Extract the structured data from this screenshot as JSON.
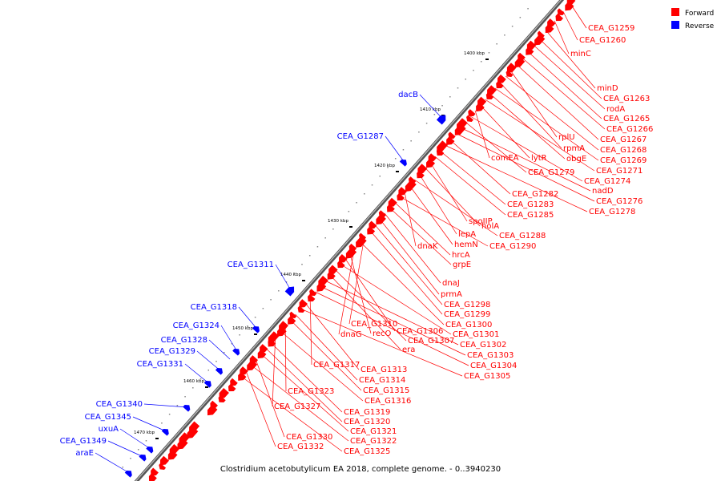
{
  "colors": {
    "forward": "#ff0000",
    "reverse": "#0000ff",
    "backbone": "#666666",
    "text": "#000000"
  },
  "legend": [
    {
      "label": "Forward",
      "color": "#ff0000"
    },
    {
      "label": "Reverse",
      "color": "#0000ff"
    }
  ],
  "caption": "Clostridium acetobutylicum EA 2018, complete genome. - 0..3940230",
  "ticks": [
    "1400 kbp",
    "1410 kbp",
    "1420 kbp",
    "1430 kbp",
    "1440 kbp",
    "1450 kbp",
    "1460 kbp",
    "1470 kbp"
  ],
  "forward_labels": [
    "CEA_G1259",
    "CEA_G1260",
    "minC",
    "minD",
    "CEA_G1263",
    "rodA",
    "CEA_G1265",
    "CEA_G1266",
    "CEA_G1267",
    "rplU",
    "CEA_G1268",
    "rpmA",
    "CEA_G1269",
    "obgE",
    "CEA_G1271",
    "lytR",
    "comEA",
    "CEA_G1274",
    "CEA_G1279",
    "nadD",
    "CEA_G1276",
    "CEA_G1282",
    "CEA_G1278",
    "CEA_G1283",
    "CEA_G1285",
    "spoIIP",
    "holA",
    "lepA",
    "CEA_G1288",
    "hemN",
    "dnaK",
    "CEA_G1290",
    "hrcA",
    "grpE",
    "dnaJ",
    "prmA",
    "CEA_G1298",
    "CEA_G1299",
    "CEA_G1310",
    "CEA_G1300",
    "dnaG",
    "recO",
    "CEA_G1306",
    "CEA_G1301",
    "CEA_G1307",
    "era",
    "CEA_G1302",
    "CEA_G1303",
    "CEA_G1304",
    "CEA_G1317",
    "CEA_G1313",
    "CEA_G1305",
    "CEA_G1314",
    "CEA_G1315",
    "CEA_G1323",
    "CEA_G1316",
    "CEA_G1327",
    "CEA_G1319",
    "CEA_G1320",
    "CEA_G1321",
    "CEA_G1330",
    "CEA_G1322",
    "CEA_G1332",
    "CEA_G1325"
  ],
  "reverse_labels": [
    "dacB",
    "CEA_G1287",
    "CEA_G1311",
    "CEA_G1318",
    "CEA_G1324",
    "CEA_G1328",
    "CEA_G1329",
    "CEA_G1331",
    "CEA_G1340",
    "CEA_G1345",
    "uxuA",
    "CEA_G1349",
    "araE"
  ]
}
